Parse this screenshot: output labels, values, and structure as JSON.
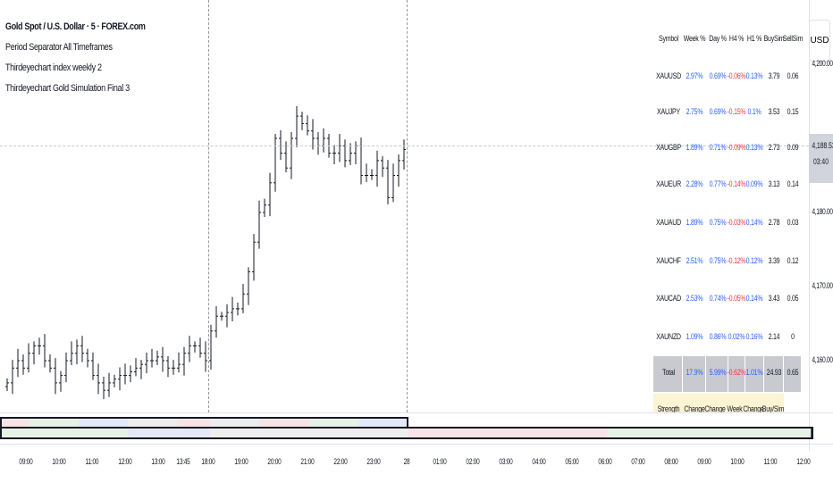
{
  "legend": {
    "title": "Gold Spot / U.S. Dollar · 5 · FOREX.com",
    "indicators": [
      "Period Separator All Timeframes",
      "Thirdeyechart index weekly 2",
      "Thirdeyechart Gold Simulation Final 3"
    ]
  },
  "price_axis": {
    "currency": "USD",
    "labels": [
      "4,200.00",
      "4,180.00",
      "4,170.00",
      "4,160.00"
    ],
    "current_price": "4,188.53",
    "countdown": "03:40"
  },
  "table": {
    "headers": [
      "Symbol",
      "Week %",
      "Day %",
      "H4 %",
      "H1 %",
      "BuySim",
      "SellSim"
    ],
    "rows": [
      [
        "XAUUSD",
        "2.97%",
        "0.69%",
        "-0.06%",
        "0.13%",
        "3.79",
        "0.06"
      ],
      [
        "XAUJPY",
        "2.75%",
        "0.69%",
        "-0.15%",
        "0.1%",
        "3.53",
        "0.15"
      ],
      [
        "XAUGBP",
        "1.89%",
        "0.71%",
        "-0.09%",
        "0.13%",
        "2.73",
        "0.09"
      ],
      [
        "XAUEUR",
        "2.28%",
        "0.77%",
        "-0.14%",
        "0.09%",
        "3.13",
        "0.14"
      ],
      [
        "XAUAUD",
        "1.89%",
        "0.75%",
        "-0.03%",
        "0.14%",
        "2.78",
        "0.03"
      ],
      [
        "XAUCHF",
        "2.51%",
        "0.75%",
        "-0.12%",
        "0.12%",
        "3.39",
        "0.12"
      ],
      [
        "XAUCAD",
        "2.53%",
        "0.74%",
        "-0.05%",
        "0.14%",
        "3.43",
        "0.05"
      ],
      [
        "XAUNZD",
        "1.09%",
        "0.86%",
        "0.02%",
        "0.16%",
        "2.14",
        "0"
      ]
    ],
    "total": [
      "Total",
      "17.9%",
      "5.99%",
      "-0.62%",
      "1.01%",
      "24.93",
      "0.65"
    ],
    "footer_partial": [
      "Strength",
      "Change",
      "Change",
      "Week",
      "Change",
      "Buy/Sim"
    ],
    "colors": {
      "positive": "#2962ff",
      "negative": "#f23645",
      "text": "#131722"
    }
  },
  "time_axis": [
    "09:00",
    "10:00",
    "11:00",
    "12:00",
    "13:00",
    "13:45",
    "18:00",
    "19:00",
    "20:00",
    "21:00",
    "22:00",
    "23:00",
    "28",
    "01:00",
    "02:00",
    "03:00",
    "04:00",
    "05:00",
    "06:00",
    "07:00",
    "08:00",
    "09:00",
    "10:00",
    "11:00",
    "12:00"
  ],
  "chart_data": {
    "type": "ohlc",
    "symbol": "XAUUSD",
    "interval": "5",
    "ylim": [
      4150,
      4210
    ],
    "closes": [
      4157,
      4159,
      4160,
      4159,
      4161,
      4162,
      4162,
      4160,
      4159,
      4157,
      4158,
      4160,
      4161,
      4162,
      4161,
      4160,
      4158,
      4157,
      4156,
      4157,
      4157.5,
      4158,
      4158,
      4158.5,
      4159,
      4159.5,
      4160,
      4160,
      4160.5,
      4160,
      4159,
      4159,
      4159.5,
      4161,
      4162,
      4162,
      4161,
      4160,
      4164,
      4166,
      4166,
      4166.5,
      4167,
      4167,
      4169,
      4172,
      4176,
      4180,
      4181,
      4184,
      4190,
      4188,
      4186,
      4190,
      4193,
      4192,
      4191,
      4190,
      4189,
      4190,
      4188,
      4188,
      4189,
      4187,
      4188,
      4189,
      4185,
      4185,
      4185,
      4187,
      4186,
      4182,
      4185,
      4187,
      4188.5
    ]
  }
}
